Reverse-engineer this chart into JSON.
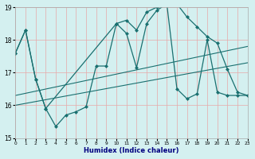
{
  "xlabel": "Humidex (Indice chaleur)",
  "bg_color": "#d4f0f0",
  "grid_color": "#e8a8a8",
  "line_color": "#1a7070",
  "xlim": [
    0,
    23
  ],
  "ylim": [
    15,
    19
  ],
  "yticks": [
    15,
    16,
    17,
    18,
    19
  ],
  "xtick_labels": [
    "0",
    "1",
    "2",
    "3",
    "4",
    "5",
    "6",
    "7",
    "8",
    "9",
    "10",
    "11",
    "12",
    "13",
    "14",
    "15",
    "16",
    "17",
    "18",
    "19",
    "20",
    "21",
    "22",
    "23"
  ],
  "line1_x": [
    0,
    1,
    2,
    3,
    4,
    5,
    6,
    7,
    8,
    9,
    10,
    11,
    12,
    13,
    14,
    15,
    16,
    17,
    18,
    19,
    20,
    21,
    22,
    23
  ],
  "line1_y": [
    17.6,
    18.3,
    16.8,
    15.9,
    15.35,
    15.7,
    15.8,
    15.95,
    17.2,
    17.2,
    18.5,
    18.2,
    17.15,
    18.5,
    18.9,
    19.1,
    16.5,
    16.2,
    16.35,
    18.0,
    16.4,
    16.3,
    16.3,
    16.3
  ],
  "line2_x": [
    0,
    1,
    2,
    3,
    10,
    11,
    12,
    13,
    14,
    15,
    16,
    17,
    18,
    19,
    20,
    21,
    22,
    23
  ],
  "line2_y": [
    17.6,
    18.3,
    16.8,
    15.9,
    18.5,
    18.6,
    18.3,
    18.85,
    19.0,
    19.1,
    19.1,
    18.7,
    18.4,
    18.1,
    17.9,
    17.1,
    16.4,
    16.3
  ],
  "line3_x": [
    0,
    23
  ],
  "line3_y": [
    16.0,
    17.3
  ],
  "line4_x": [
    0,
    23
  ],
  "line4_y": [
    16.3,
    17.8
  ]
}
